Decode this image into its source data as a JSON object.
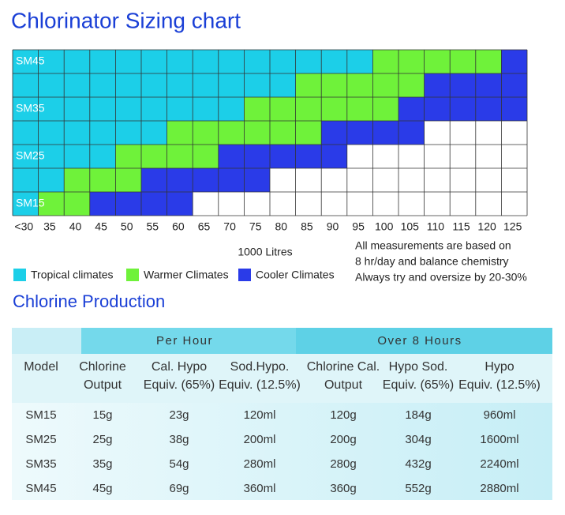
{
  "sizing_chart": {
    "title": "Chlorinator Sizing chart",
    "row_labels": [
      "SM45",
      null,
      "SM35",
      null,
      "SM25",
      null,
      "SM15"
    ],
    "columns": [
      "<30",
      "35",
      "40",
      "45",
      "50",
      "55",
      "60",
      "65",
      "70",
      "75",
      "80",
      "85",
      "90",
      "95",
      "100",
      "105",
      "110",
      "115",
      "120",
      "125"
    ],
    "cells": [
      [
        "#1ccfe8",
        "#1ccfe8",
        "#1ccfe8",
        "#1ccfe8",
        "#1ccfe8",
        "#1ccfe8",
        "#1ccfe8",
        "#1ccfe8",
        "#1ccfe8",
        "#1ccfe8",
        "#1ccfe8",
        "#1ccfe8",
        "#1ccfe8",
        "#1ccfe8",
        "#6ff23a",
        "#6ff23a",
        "#6ff23a",
        "#6ff23a",
        "#6ff23a",
        "#2a3be8"
      ],
      [
        "#1ccfe8",
        "#1ccfe8",
        "#1ccfe8",
        "#1ccfe8",
        "#1ccfe8",
        "#1ccfe8",
        "#1ccfe8",
        "#1ccfe8",
        "#1ccfe8",
        "#1ccfe8",
        "#1ccfe8",
        "#6ff23a",
        "#6ff23a",
        "#6ff23a",
        "#6ff23a",
        "#6ff23a",
        "#2a3be8",
        "#2a3be8",
        "#2a3be8",
        "#2a3be8"
      ],
      [
        "#1ccfe8",
        "#1ccfe8",
        "#1ccfe8",
        "#1ccfe8",
        "#1ccfe8",
        "#1ccfe8",
        "#1ccfe8",
        "#1ccfe8",
        "#1ccfe8",
        "#6ff23a",
        "#6ff23a",
        "#6ff23a",
        "#6ff23a",
        "#6ff23a",
        "#6ff23a",
        "#2a3be8",
        "#2a3be8",
        "#2a3be8",
        "#2a3be8",
        "#2a3be8"
      ],
      [
        "#1ccfe8",
        "#1ccfe8",
        "#1ccfe8",
        "#1ccfe8",
        "#1ccfe8",
        "#1ccfe8",
        "#6ff23a",
        "#6ff23a",
        "#6ff23a",
        "#6ff23a",
        "#6ff23a",
        "#6ff23a",
        "#2a3be8",
        "#2a3be8",
        "#2a3be8",
        "#2a3be8",
        null,
        null,
        null,
        null
      ],
      [
        "#1ccfe8",
        "#1ccfe8",
        "#1ccfe8",
        "#1ccfe8",
        "#6ff23a",
        "#6ff23a",
        "#6ff23a",
        "#6ff23a",
        "#2a3be8",
        "#2a3be8",
        "#2a3be8",
        "#2a3be8",
        "#2a3be8",
        null,
        null,
        null,
        null,
        null,
        null,
        null
      ],
      [
        "#1ccfe8",
        "#1ccfe8",
        "#6ff23a",
        "#6ff23a",
        "#6ff23a",
        "#2a3be8",
        "#2a3be8",
        "#2a3be8",
        "#2a3be8",
        "#2a3be8",
        null,
        null,
        null,
        null,
        null,
        null,
        null,
        null,
        null,
        null
      ],
      [
        "#1ccfe8",
        "#6ff23a",
        "#6ff23a",
        "#2a3be8",
        "#2a3be8",
        "#2a3be8",
        "#2a3be8",
        null,
        null,
        null,
        null,
        null,
        null,
        null,
        null,
        null,
        null,
        null,
        null,
        null
      ]
    ],
    "axis_label": "1000 Litres",
    "legend": [
      {
        "label": "Tropical climates",
        "color": "#1ccfe8"
      },
      {
        "label": "Warmer Climates",
        "color": "#6ff23a"
      },
      {
        "label": "Cooler Climates",
        "color": "#2a3be8"
      }
    ],
    "notes": [
      "All measurements are based on",
      "8 hr/day and balance chemistry",
      "Always try and oversize by 20-30%"
    ]
  },
  "production_table": {
    "title": "Chlorine Production",
    "groups": [
      "Per Hour",
      "Over 8 Hours"
    ],
    "columns": [
      [
        "Model"
      ],
      [
        "Chlorine",
        "Output"
      ],
      [
        "Cal. Hypo",
        "Equiv. (65%)"
      ],
      [
        "Sod.Hypo.",
        "Equiv. (12.5%)"
      ],
      [
        "Chlorine Cal.",
        "Output"
      ],
      [
        "Hypo Sod.",
        "Equiv. (65%)"
      ],
      [
        "Hypo",
        "Equiv. (12.5%)"
      ]
    ],
    "rows": [
      [
        "SM15",
        "15g",
        "23g",
        "120ml",
        "120g",
        "184g",
        "960ml"
      ],
      [
        "SM25",
        "25g",
        "38g",
        "200ml",
        "200g",
        "304g",
        "1600ml"
      ],
      [
        "SM35",
        "35g",
        "54g",
        "280ml",
        "280g",
        "432g",
        "2240ml"
      ],
      [
        "SM45",
        "45g",
        "69g",
        "360ml",
        "360g",
        "552g",
        "2880ml"
      ]
    ]
  }
}
